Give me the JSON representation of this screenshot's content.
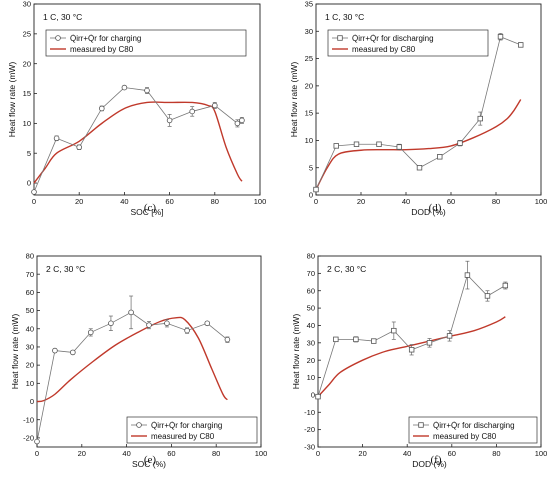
{
  "chart_data": [
    {
      "panel": "c",
      "caption": "(c)",
      "annotation": "1 C, 30 °C",
      "type": "line",
      "xlabel": "SOC [%]",
      "ylabel": "Heat flow rate (mW)",
      "xlim": [
        0,
        100
      ],
      "ylim": [
        -2,
        30
      ],
      "xticks": [
        0,
        20,
        40,
        60,
        80,
        100
      ],
      "yticks": [
        0,
        5,
        10,
        15,
        20,
        25,
        30
      ],
      "legend_position": "top-left",
      "series": [
        {
          "name": "Q̇irr+Q̇r for charging",
          "marker": "circle",
          "color": "#555555",
          "x": [
            0,
            10,
            20,
            30,
            40,
            50,
            60,
            70,
            80,
            90,
            92
          ],
          "y": [
            -1.5,
            7.5,
            6,
            12.5,
            16,
            15.5,
            10.5,
            12,
            13,
            10,
            10.5
          ],
          "err": [
            0,
            0.4,
            0.4,
            0.4,
            0.3,
            0.5,
            1,
            0.8,
            0.5,
            0.6,
            0.5
          ]
        },
        {
          "name": "measured by C80",
          "color": "#c0392b",
          "x": [
            0,
            5,
            10,
            20,
            30,
            40,
            50,
            60,
            70,
            77,
            80,
            85,
            90,
            92
          ],
          "y": [
            0,
            2.5,
            5,
            7,
            10,
            12.5,
            13.5,
            13.5,
            13.5,
            13,
            12,
            6,
            1.5,
            0.3
          ]
        }
      ]
    },
    {
      "panel": "d",
      "caption": "(d)",
      "annotation": "1 C, 30 °C",
      "type": "line",
      "xlabel": "DOD (%)",
      "ylabel": "Heat flow rate (mW)",
      "xlim": [
        0,
        100
      ],
      "ylim": [
        0,
        35
      ],
      "xticks": [
        0,
        20,
        40,
        60,
        80,
        100
      ],
      "yticks": [
        0,
        5,
        10,
        15,
        20,
        25,
        30,
        35
      ],
      "legend_position": "top-left",
      "series": [
        {
          "name": "Q̇irr+Q̇r for discharging",
          "marker": "square",
          "color": "#555555",
          "x": [
            0,
            9,
            18,
            28,
            37,
            46,
            55,
            64,
            73,
            82,
            91
          ],
          "y": [
            1,
            9,
            9.3,
            9.3,
            8.8,
            5,
            7,
            9.5,
            14,
            29,
            27.5
          ],
          "err": [
            0,
            0.3,
            0.3,
            0.3,
            0.5,
            0.3,
            0.4,
            0.5,
            1.2,
            0.6,
            0.4
          ]
        },
        {
          "name": "measured by C80",
          "color": "#c0392b",
          "x": [
            0,
            5,
            10,
            20,
            30,
            40,
            50,
            60,
            70,
            80,
            85,
            88,
            91
          ],
          "y": [
            1,
            5,
            7.5,
            8.2,
            8.3,
            8.3,
            8.5,
            9,
            10.5,
            12.5,
            14,
            15.5,
            17.5
          ]
        }
      ]
    },
    {
      "panel": "e",
      "caption": "(e)",
      "annotation": "2 C, 30 °C",
      "type": "line",
      "xlabel": "SOC (%)",
      "ylabel": "Heat flow rate (mW)",
      "xlim": [
        0,
        100
      ],
      "ylim": [
        -25,
        80
      ],
      "xticks": [
        0,
        20,
        40,
        60,
        80,
        100
      ],
      "yticks": [
        -20,
        -10,
        0,
        10,
        20,
        30,
        40,
        50,
        60,
        70,
        80
      ],
      "legend_position": "bottom-right",
      "series": [
        {
          "name": "Q̇irr+Q̇r for charging",
          "marker": "circle",
          "color": "#555555",
          "x": [
            0,
            8,
            16,
            24,
            33,
            42,
            50,
            58,
            67,
            76,
            85
          ],
          "y": [
            -22,
            28,
            27,
            38,
            43,
            49,
            42,
            43,
            39,
            43,
            34
          ],
          "err": [
            0,
            1,
            1,
            2,
            4,
            9,
            2,
            2,
            1.5,
            1,
            1.5
          ]
        },
        {
          "name": "measured by C80",
          "color": "#c0392b",
          "x": [
            0,
            3,
            8,
            15,
            25,
            35,
            45,
            55,
            62,
            66,
            72,
            78,
            83,
            85
          ],
          "y": [
            0,
            0.5,
            4,
            12,
            22,
            31,
            38,
            44,
            46,
            45,
            35,
            18,
            4,
            1
          ]
        }
      ]
    },
    {
      "panel": "f",
      "caption": "(f)",
      "annotation": "2 C, 30 °C",
      "type": "line",
      "xlabel": "DOD (%)",
      "ylabel": "Heat flow rate (mW)",
      "xlim": [
        0,
        100
      ],
      "ylim": [
        -30,
        80
      ],
      "xticks": [
        0,
        20,
        40,
        60,
        80,
        100
      ],
      "yticks": [
        -30,
        -20,
        -10,
        0,
        10,
        20,
        30,
        40,
        50,
        60,
        70,
        80
      ],
      "legend_position": "bottom-right",
      "series": [
        {
          "name": "Q̇irr+Q̇r for discharging",
          "marker": "square",
          "color": "#555555",
          "x": [
            0,
            8,
            17,
            25,
            34,
            42,
            50,
            59,
            67,
            76,
            84
          ],
          "y": [
            -1,
            32,
            32,
            31,
            37,
            26,
            30,
            34,
            69,
            57,
            63
          ],
          "err": [
            0,
            1,
            1.5,
            1,
            5,
            3,
            2.5,
            3,
            8,
            3,
            2
          ]
        },
        {
          "name": "measured by C80",
          "color": "#c0392b",
          "x": [
            0,
            5,
            10,
            20,
            30,
            40,
            50,
            60,
            70,
            80,
            84
          ],
          "y": [
            -1,
            6,
            13,
            20,
            25,
            28,
            31,
            34,
            37,
            42,
            45
          ]
        }
      ]
    }
  ]
}
